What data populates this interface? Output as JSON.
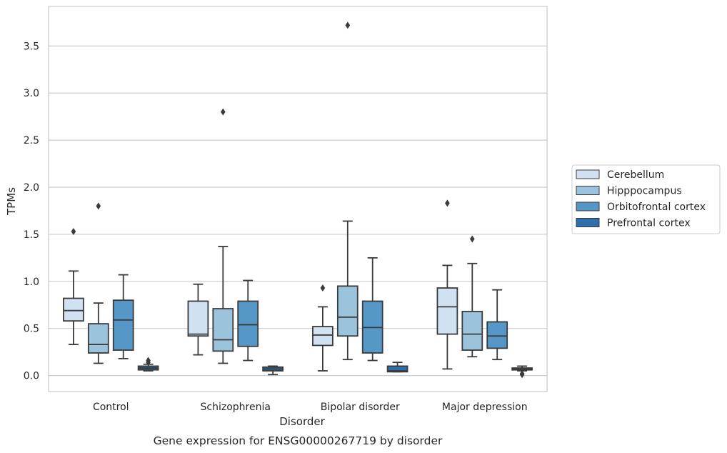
{
  "caption": "Gene expression for ENSG00000267719 by disorder",
  "chart_data": {
    "type": "box",
    "xlabel": "Disorder",
    "ylabel": "TPMs",
    "ylim": [
      -0.17,
      3.92
    ],
    "yticks": [
      0.0,
      0.5,
      1.0,
      1.5,
      2.0,
      2.5,
      3.0,
      3.5
    ],
    "ytick_labels": [
      "0.0",
      "0.5",
      "1.0",
      "1.5",
      "2.0",
      "2.5",
      "3.0",
      "3.5"
    ],
    "grid": true,
    "legend_position": "right-center",
    "categories": [
      "Control",
      "Schizophrenia",
      "Bipolar disorder",
      "Major depression"
    ],
    "series": [
      {
        "name": "Cerebellum",
        "color": "#d0e1f2",
        "boxes": [
          {
            "whislo": 0.33,
            "q1": 0.58,
            "med": 0.69,
            "q3": 0.82,
            "whishi": 1.11,
            "fliers": [
              1.53
            ]
          },
          {
            "whislo": 0.22,
            "q1": 0.42,
            "med": 0.44,
            "q3": 0.79,
            "whishi": 0.97,
            "fliers": []
          },
          {
            "whislo": 0.05,
            "q1": 0.32,
            "med": 0.43,
            "q3": 0.52,
            "whishi": 0.73,
            "fliers": [
              0.93
            ]
          },
          {
            "whislo": 0.07,
            "q1": 0.44,
            "med": 0.73,
            "q3": 0.93,
            "whishi": 1.17,
            "fliers": [
              1.83
            ]
          }
        ]
      },
      {
        "name": "Hipppocampus",
        "color": "#9cc3dc",
        "boxes": [
          {
            "whislo": 0.13,
            "q1": 0.24,
            "med": 0.33,
            "q3": 0.55,
            "whishi": 0.77,
            "fliers": [
              1.8
            ]
          },
          {
            "whislo": 0.13,
            "q1": 0.26,
            "med": 0.38,
            "q3": 0.71,
            "whishi": 1.37,
            "fliers": [
              2.8
            ]
          },
          {
            "whislo": 0.17,
            "q1": 0.42,
            "med": 0.62,
            "q3": 0.95,
            "whishi": 1.64,
            "fliers": [
              3.72
            ]
          },
          {
            "whislo": 0.2,
            "q1": 0.27,
            "med": 0.44,
            "q3": 0.68,
            "whishi": 1.19,
            "fliers": [
              1.45
            ]
          }
        ]
      },
      {
        "name": "Orbitofrontal cortex",
        "color": "#5597c6",
        "boxes": [
          {
            "whislo": 0.18,
            "q1": 0.27,
            "med": 0.59,
            "q3": 0.8,
            "whishi": 1.07,
            "fliers": []
          },
          {
            "whislo": 0.16,
            "q1": 0.31,
            "med": 0.54,
            "q3": 0.79,
            "whishi": 1.01,
            "fliers": []
          },
          {
            "whislo": 0.16,
            "q1": 0.24,
            "med": 0.51,
            "q3": 0.79,
            "whishi": 1.25,
            "fliers": []
          },
          {
            "whislo": 0.17,
            "q1": 0.29,
            "med": 0.42,
            "q3": 0.57,
            "whishi": 0.91,
            "fliers": []
          }
        ]
      },
      {
        "name": "Prefrontal cortex",
        "color": "#2c6faa",
        "boxes": [
          {
            "whislo": 0.05,
            "q1": 0.06,
            "med": 0.08,
            "q3": 0.1,
            "whishi": 0.12,
            "fliers": [
              0.16,
              0.14
            ]
          },
          {
            "whislo": 0.01,
            "q1": 0.05,
            "med": 0.07,
            "q3": 0.09,
            "whishi": 0.1,
            "fliers": []
          },
          {
            "whislo": 0.04,
            "q1": 0.04,
            "med": 0.05,
            "q3": 0.1,
            "whishi": 0.14,
            "fliers": []
          },
          {
            "whislo": 0.05,
            "q1": 0.06,
            "med": 0.07,
            "q3": 0.08,
            "whishi": 0.1,
            "fliers": [
              0.02,
              0.01
            ]
          }
        ]
      }
    ]
  }
}
